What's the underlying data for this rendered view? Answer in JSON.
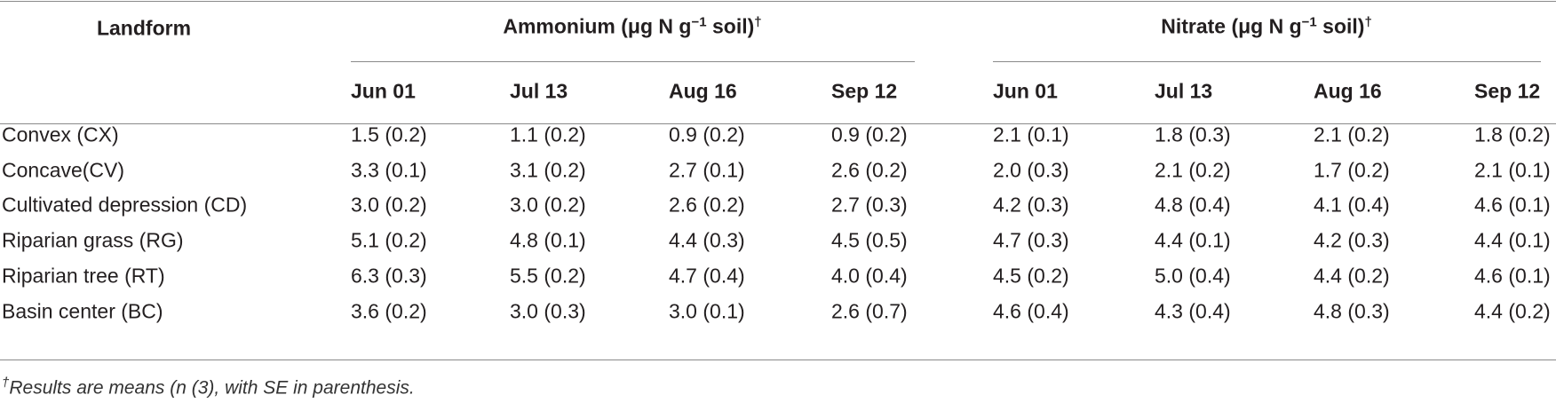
{
  "table": {
    "header": {
      "landform": "Landform",
      "groups": [
        {
          "text": "Ammonium (μg N g",
          "sup": "−1",
          "rest": " soil)",
          "mark": "†"
        },
        {
          "text": "Nitrate (μg N g",
          "sup": "−1",
          "rest": " soil)",
          "mark": "†"
        }
      ],
      "dates": [
        "Jun 01",
        "Jul 13",
        "Aug 16",
        "Sep 12",
        "Jun 01",
        "Jul 13",
        "Aug 16",
        "Sep 12"
      ]
    },
    "rows": [
      [
        "Convex (CX)",
        "1.5 (0.2)",
        "1.1 (0.2)",
        "0.9 (0.2)",
        "0.9 (0.2)",
        "2.1 (0.1)",
        "1.8 (0.3)",
        "2.1 (0.2)",
        "1.8 (0.2)"
      ],
      [
        "Concave(CV)",
        "3.3 (0.1)",
        "3.1 (0.2)",
        "2.7 (0.1)",
        "2.6 (0.2)",
        "2.0 (0.3)",
        "2.1 (0.2)",
        "1.7 (0.2)",
        "2.1 (0.1)"
      ],
      [
        "Cultivated depression (CD)",
        "3.0 (0.2)",
        "3.0 (0.2)",
        "2.6 (0.2)",
        "2.7 (0.3)",
        "4.2 (0.3)",
        "4.8 (0.4)",
        "4.1 (0.4)",
        "4.6 (0.1)"
      ],
      [
        "Riparian grass (RG)",
        "5.1 (0.2)",
        "4.8 (0.1)",
        "4.4 (0.3)",
        "4.5 (0.5)",
        "4.7 (0.3)",
        "4.4 (0.1)",
        "4.2 (0.3)",
        "4.4 (0.1)"
      ],
      [
        "Riparian tree (RT)",
        "6.3 (0.3)",
        "5.5 (0.2)",
        "4.7 (0.4)",
        "4.0 (0.4)",
        "4.5 (0.2)",
        "5.0 (0.4)",
        "4.4 (0.2)",
        "4.6 (0.1)"
      ],
      [
        "Basin center (BC)",
        "3.6 (0.2)",
        "3.0 (0.3)",
        "3.0 (0.1)",
        "2.6 (0.7)",
        "4.6 (0.4)",
        "4.3 (0.4)",
        "4.8 (0.3)",
        "4.4 (0.2)"
      ]
    ]
  },
  "footnote": {
    "mark": "†",
    "text": "Results are means (n (3), with SE in parenthesis."
  }
}
